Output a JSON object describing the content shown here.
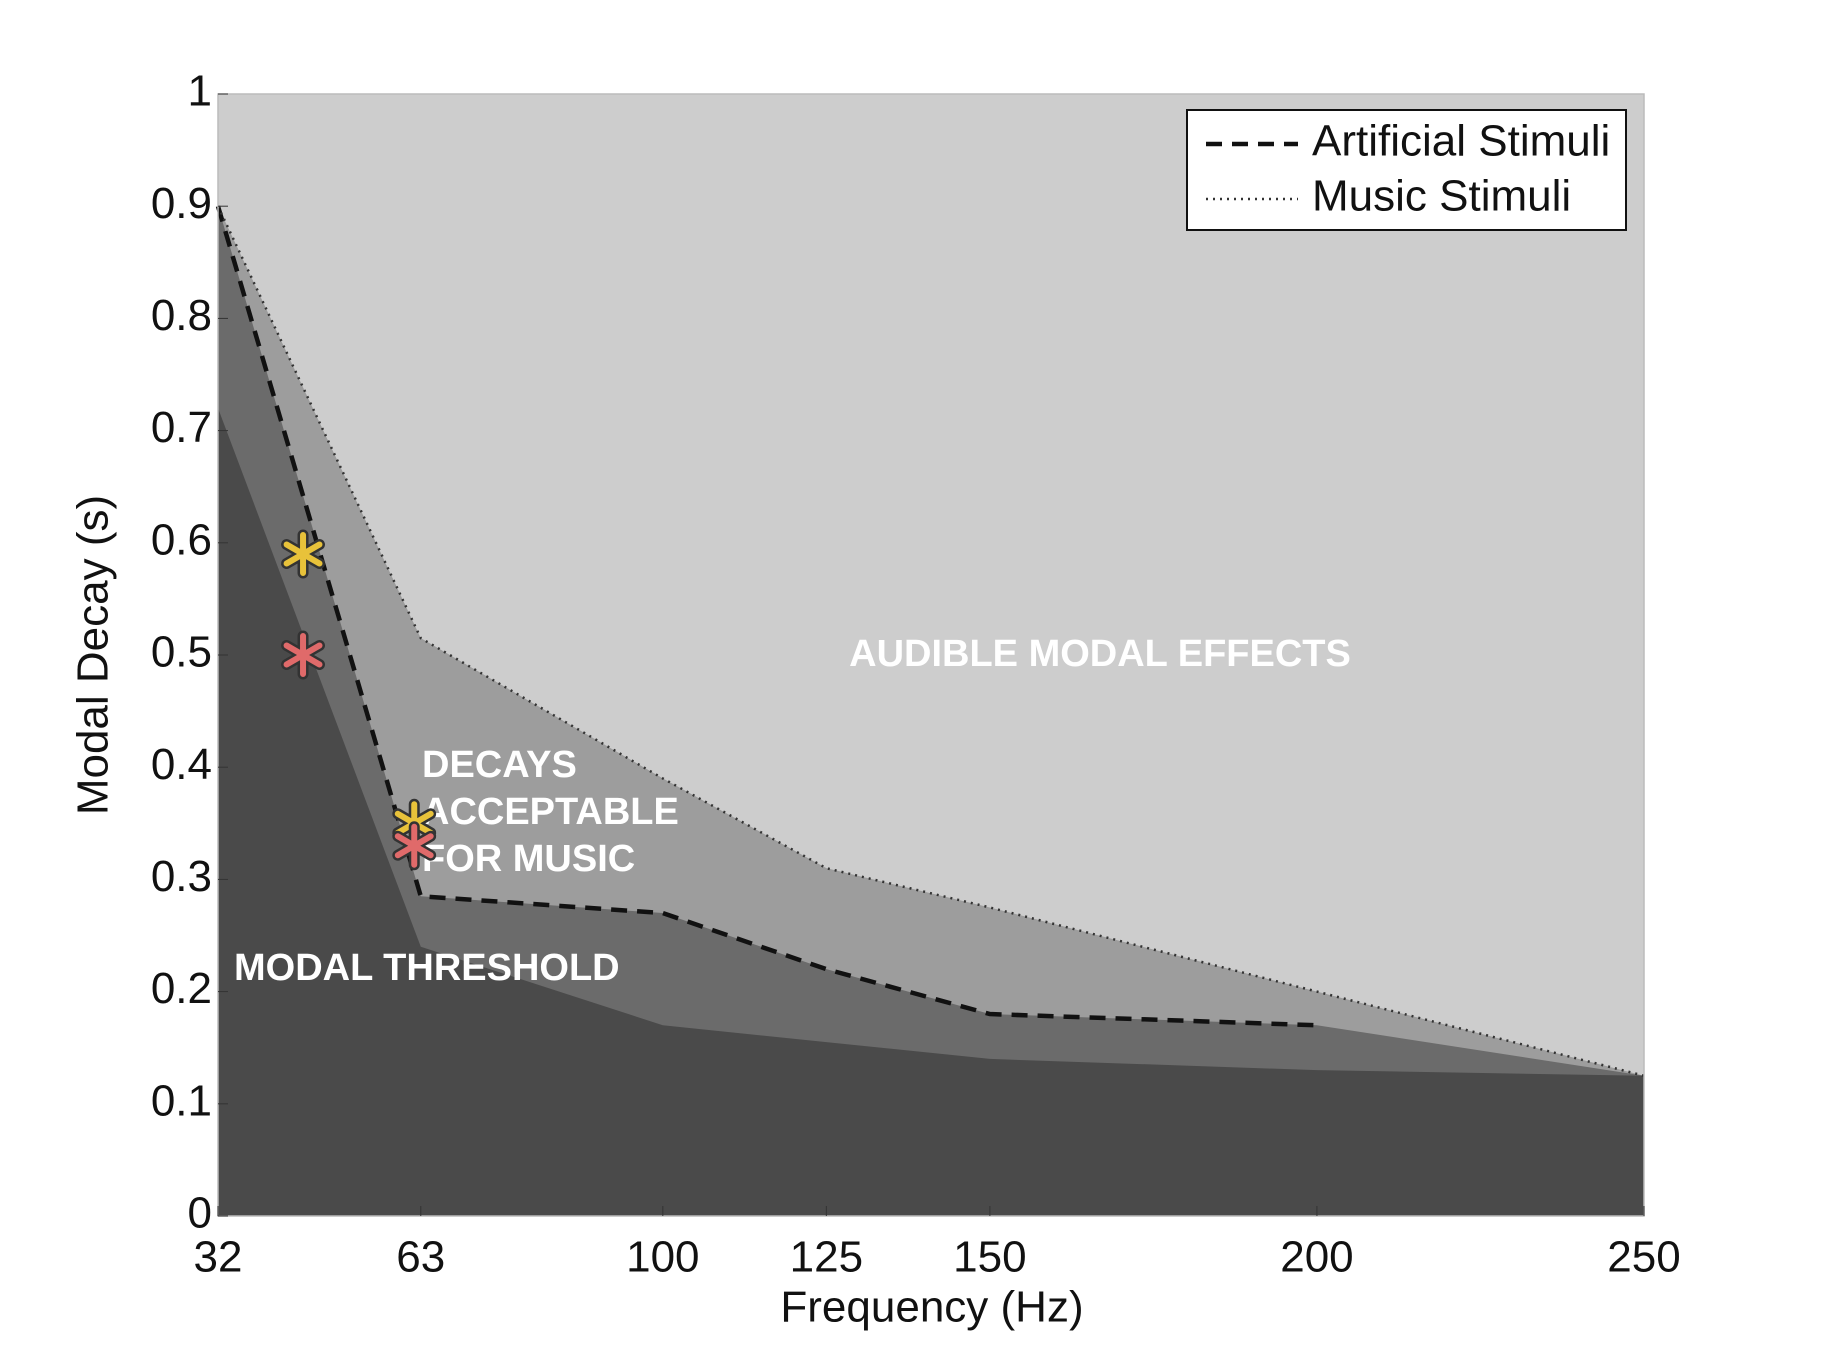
{
  "chart_data": {
    "type": "area",
    "xlabel": "Frequency (Hz)",
    "ylabel": "Modal Decay (s)",
    "x": [
      32,
      63,
      100,
      125,
      150,
      200,
      250
    ],
    "xlim": [
      32,
      250
    ],
    "xticks": [
      32,
      63,
      100,
      125,
      150,
      200,
      250
    ],
    "ylim": [
      0,
      1
    ],
    "yticks": [
      0,
      0.1,
      0.2,
      0.3,
      0.4,
      0.5,
      0.6,
      0.7,
      0.8,
      0.9,
      1
    ],
    "background": "#cdcdcd",
    "legend": "upper right",
    "series": [
      {
        "name": "Artificial Stimuli",
        "line": "dashed",
        "color": "#111111",
        "fill": "#6b6b6b",
        "values": [
          0.9,
          0.285,
          0.27,
          0.22,
          0.18,
          0.17,
          null
        ]
      },
      {
        "name": "Music Stimuli",
        "line": "dotted",
        "color": "#333333",
        "fill": "#9d9d9d",
        "values": [
          0.9,
          0.515,
          0.39,
          0.31,
          0.275,
          0.2,
          0.125
        ]
      }
    ],
    "threshold": {
      "color": "#4a4a4a",
      "values": [
        0.72,
        0.24,
        0.17,
        0.155,
        0.14,
        0.13,
        0.125
      ]
    },
    "annotations": {
      "audible": [
        "AUDIBLE MODAL EFFECTS"
      ],
      "music": [
        "DECAYS",
        "ACCEPTABLE",
        "FOR MUSIC"
      ],
      "threshold": [
        "MODAL THRESHOLD"
      ]
    },
    "markers": [
      {
        "x": 45,
        "y": 0.59,
        "color": "#e8c23a"
      },
      {
        "x": 45,
        "y": 0.5,
        "color": "#e06a6a"
      },
      {
        "x": 62,
        "y": 0.35,
        "color": "#e8c23a"
      },
      {
        "x": 62,
        "y": 0.33,
        "color": "#e06a6a"
      }
    ]
  }
}
